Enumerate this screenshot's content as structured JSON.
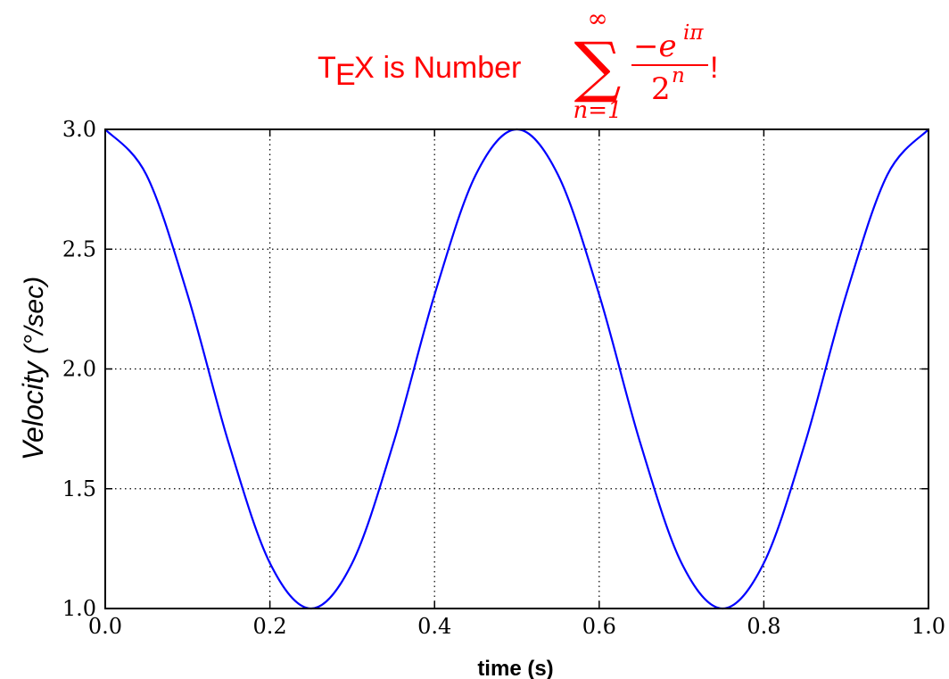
{
  "chart_data": {
    "type": "line",
    "title": {
      "prefix_tex_T": "T",
      "prefix_tex_E": "E",
      "prefix_tex_X": "X",
      "text": " is Number ",
      "sum_symbol": "∑",
      "sum_upper": "∞",
      "sum_lower": "n=1",
      "numerator": "−e",
      "numerator_exponent": "iπ",
      "denominator": "2",
      "denominator_exponent": "n",
      "suffix": "!"
    },
    "xlabel": "time (s)",
    "ylabel_main": "Velocity",
    "ylabel_unit": " (°/sec)",
    "xlim": [
      0.0,
      1.0
    ],
    "ylim": [
      1.0,
      3.0
    ],
    "xticks": [
      "0.0",
      "0.2",
      "0.4",
      "0.6",
      "0.8",
      "1.0"
    ],
    "yticks": [
      "1.0",
      "1.5",
      "2.0",
      "2.5",
      "3.0"
    ],
    "grid": true,
    "series": [
      {
        "x": [
          0.0,
          0.05,
          0.1,
          0.15,
          0.2,
          0.25,
          0.3,
          0.35,
          0.4,
          0.45,
          0.5,
          0.55,
          0.6,
          0.65,
          0.7,
          0.75,
          0.8,
          0.85,
          0.9,
          0.95,
          1.0
        ],
        "y": [
          3.0,
          2.81,
          2.31,
          1.69,
          1.19,
          1.0,
          1.19,
          1.69,
          2.31,
          2.81,
          3.0,
          2.81,
          2.31,
          1.69,
          1.19,
          1.0,
          1.19,
          1.69,
          2.31,
          2.81,
          3.0
        ]
      }
    ],
    "colors": {
      "line": "#0000ff",
      "title": "#ff0000",
      "axis": "#000000",
      "grid": "#000000"
    }
  }
}
